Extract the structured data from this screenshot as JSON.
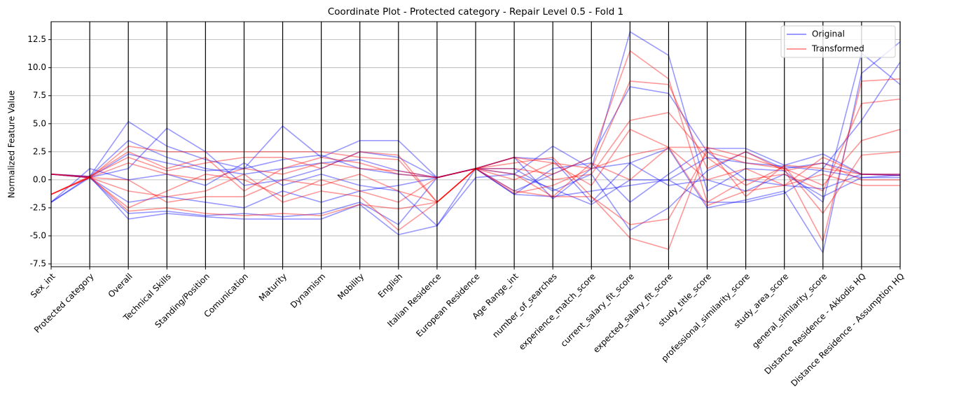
{
  "chart_data": {
    "type": "parallel",
    "title": "Coordinate Plot - Protected category - Repair Level 0.5 - Fold 1",
    "y_label": "Normalized Feature Value",
    "categories": [
      "Sex_int",
      "Protected category",
      "Overall",
      "Technical Skills",
      "Standing/Position",
      "Comunication",
      "Maturity",
      "Dynamism",
      "Mobility",
      "English",
      "Italian Residence",
      "European Residence",
      "Age Range_int",
      "number_of_searches",
      "experience_match_score",
      "current_salary_fit_score",
      "expected_salary_fit_score",
      "study_title_score",
      "professional_similarity_score",
      "study_area_score",
      "general_similarity_score",
      "Distance Residence - Akkodis HQ",
      "Distance Residence - Assumption HQ"
    ],
    "ylim": [
      -7.75,
      14.1
    ],
    "yticks": [
      -7.5,
      {
        "value": -5,
        "label": "-5.0"
      },
      -2.5,
      {
        "value": 0,
        "label": "0.0"
      },
      2.5,
      {
        "value": 5,
        "label": "5.0"
      },
      7.5,
      {
        "value": 10,
        "label": "10.0"
      },
      12.5
    ],
    "grid": true,
    "legend": "upper right",
    "series": [
      {
        "name": "Original",
        "color": "#0000ff",
        "lines": [
          [
            0.5,
            0.2,
            2.3,
            1.5,
            0.8,
            1.0,
            1.8,
            2.2,
            1.0,
            0.5,
            0.2,
            1.0,
            -1.3,
            -1.5,
            -1.0,
            -0.5,
            0.0,
            2.0,
            1.5,
            1.2,
            0.8,
            0.2,
            0.4
          ],
          [
            -2.0,
            0.3,
            -3.5,
            -3.0,
            -3.3,
            -3.5,
            -3.5,
            -3.5,
            -2.2,
            -4.9,
            -4.1,
            1.0,
            2.0,
            1.8,
            -2.0,
            1.5,
            2.8,
            -2.5,
            -1.8,
            -1.0,
            -6.5,
            9.5,
            12.3
          ],
          [
            0.5,
            0.3,
            5.2,
            3.0,
            1.8,
            1.0,
            4.8,
            2.0,
            3.5,
            3.5,
            0.2,
            1.0,
            0.5,
            3.0,
            1.0,
            13.2,
            11.1,
            -1.0,
            1.0,
            0.8,
            -2.0,
            11.3,
            8.5
          ],
          [
            -2.0,
            0.2,
            -2.0,
            -1.5,
            -2.0,
            -2.5,
            -1.0,
            -2.0,
            -1.0,
            -0.5,
            0.2,
            1.0,
            1.0,
            -1.0,
            0.5,
            -4.5,
            -2.5,
            0.8,
            2.5,
            1.0,
            1.5,
            0.5,
            0.5
          ],
          [
            0.5,
            0.2,
            1.0,
            4.6,
            2.5,
            -0.5,
            0.0,
            1.0,
            2.5,
            2.0,
            0.2,
            1.0,
            -1.0,
            0.5,
            2.0,
            8.3,
            7.7,
            2.5,
            0.0,
            -0.5,
            -0.8,
            0.5,
            0.4
          ],
          [
            -2.0,
            1.0,
            0.0,
            0.5,
            -0.5,
            1.5,
            -0.5,
            0.5,
            -0.5,
            -1.0,
            -4.1,
            0.2,
            0.5,
            -0.8,
            -2.2,
            0.0,
            0.0,
            -2.0,
            -2.0,
            -1.2,
            1.0,
            5.3,
            10.5
          ],
          [
            0.5,
            0.2,
            -3.0,
            -2.8,
            -3.2,
            -3.0,
            -3.3,
            -3.0,
            -2.0,
            -4.0,
            0.2,
            1.0,
            -1.3,
            1.0,
            1.5,
            -2.0,
            0.5,
            2.8,
            2.8,
            1.3,
            2.3,
            0.5,
            0.4
          ],
          [
            0.5,
            0.3,
            3.5,
            2.0,
            1.0,
            0.5,
            1.0,
            1.5,
            1.8,
            0.8,
            0.2,
            1.0,
            2.0,
            -1.7,
            1.0,
            1.5,
            -0.5,
            0.0,
            -1.0,
            0.5,
            -1.5,
            0.2,
            0.2
          ]
        ]
      },
      {
        "name": "Transformed",
        "color": "#ff0000",
        "lines": [
          [
            -1.3,
            0.2,
            3.0,
            2.5,
            2.5,
            2.5,
            2.5,
            2.5,
            2.0,
            1.8,
            -2.0,
            1.0,
            2.0,
            1.5,
            1.0,
            2.2,
            2.9,
            2.9,
            -1.5,
            1.3,
            1.0,
            0.5,
            0.5
          ],
          [
            -1.3,
            0.3,
            -2.8,
            -2.5,
            -3.0,
            -3.2,
            -3.0,
            -3.2,
            -2.2,
            -2.6,
            -2.0,
            1.0,
            -1.0,
            -1.5,
            -1.5,
            -5.2,
            -6.2,
            2.9,
            2.0,
            1.0,
            -5.5,
            8.8,
            9.0
          ],
          [
            0.5,
            0.2,
            1.5,
            0.5,
            0.0,
            1.0,
            0.5,
            1.5,
            1.0,
            0.8,
            0.2,
            1.0,
            1.0,
            0.5,
            2.0,
            11.5,
            9.0,
            -2.0,
            0.0,
            0.5,
            -1.0,
            6.8,
            7.2
          ],
          [
            -1.3,
            0.2,
            -1.0,
            -1.5,
            -1.0,
            0.5,
            -2.0,
            -1.0,
            -1.5,
            -4.5,
            -2.0,
            1.0,
            0.0,
            1.5,
            -0.5,
            4.5,
            2.9,
            0.0,
            1.0,
            -0.5,
            0.5,
            -0.5,
            -0.5
          ],
          [
            0.5,
            0.3,
            2.5,
            1.0,
            2.0,
            -1.0,
            1.0,
            2.0,
            1.5,
            0.5,
            0.2,
            1.0,
            -1.2,
            -0.5,
            1.0,
            8.8,
            8.5,
            1.0,
            2.5,
            0.8,
            1.5,
            0.0,
            0.0
          ],
          [
            -1.3,
            0.2,
            0.0,
            -2.0,
            -1.5,
            -1.5,
            0.0,
            -0.5,
            0.5,
            -1.0,
            -2.0,
            1.0,
            1.5,
            2.0,
            -1.5,
            -4.0,
            -3.5,
            2.5,
            1.5,
            1.0,
            -0.5,
            3.5,
            4.5
          ],
          [
            0.5,
            0.2,
            -2.5,
            -1.0,
            0.5,
            0.0,
            -1.5,
            0.0,
            -1.0,
            -2.0,
            0.2,
            1.0,
            0.5,
            -1.5,
            1.5,
            0.0,
            2.9,
            -2.3,
            -1.0,
            -0.5,
            2.0,
            0.5,
            0.4
          ],
          [
            -1.3,
            0.3,
            2.0,
            0.8,
            1.5,
            2.0,
            2.0,
            1.0,
            2.5,
            2.2,
            -2.0,
            1.0,
            2.0,
            0.0,
            0.5,
            5.3,
            6.0,
            2.0,
            -0.5,
            1.2,
            -3.0,
            2.2,
            2.5
          ]
        ]
      }
    ]
  }
}
